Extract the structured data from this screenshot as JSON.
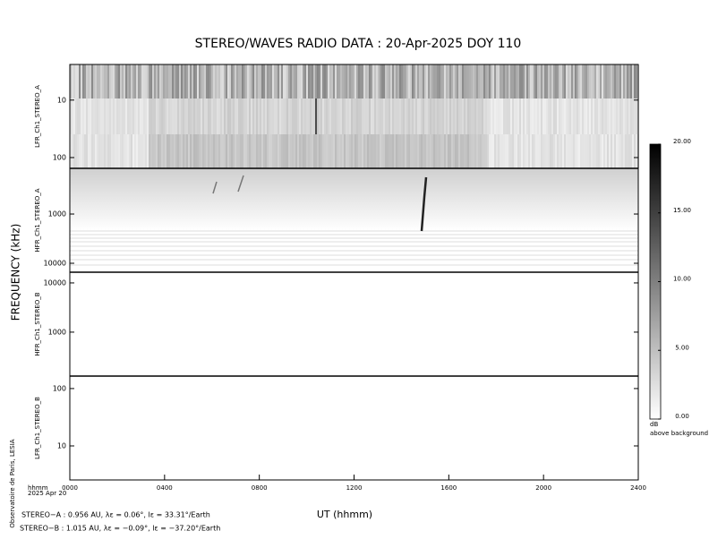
{
  "title": "STEREO/WAVES  RADIO  DATA : 20-Apr-2025  DOY 110",
  "ylabel": "FREQUENCY (kHz)",
  "credit": "Observatoire de Paris, LESIA",
  "chart_data": [
    {
      "type": "spectrogram",
      "ylabel": "LFR_Ch1_STEREO_A",
      "log": true,
      "ylim": [
        154,
        2.4
      ],
      "yticks": [
        10,
        100
      ]
    },
    {
      "type": "spectrogram",
      "ylabel": "HFR_Ch1_STEREO_A",
      "log": true,
      "ylim": [
        15200,
        118
      ],
      "yticks": [
        1000,
        10000
      ]
    },
    {
      "type": "spectrogram",
      "ylabel": "HFR_Ch1_STEREO_B",
      "log": true,
      "ylim": [
        128,
        16500
      ],
      "yticks": [
        1000,
        10000
      ]
    },
    {
      "type": "spectrogram",
      "ylabel": "LFR_Ch1_STEREO_B",
      "log": true,
      "ylim": [
        2.55,
        165
      ],
      "yticks": [
        10,
        100
      ]
    }
  ],
  "x_axis": {
    "label": "UT (hhmm)",
    "unit_label": "hhmm",
    "date": "2025 Apr 20",
    "xlim": [
      0,
      24
    ],
    "xticks": [
      {
        "value": 0,
        "label": "0000"
      },
      {
        "value": 4,
        "label": "0400"
      },
      {
        "value": 8,
        "label": "0800"
      },
      {
        "value": 12,
        "label": "1200"
      },
      {
        "value": 16,
        "label": "1600"
      },
      {
        "value": 20,
        "label": "2000"
      },
      {
        "value": 24,
        "label": "2400"
      }
    ]
  },
  "colorbar": {
    "label": "dB",
    "sublabel": "above background",
    "clim": [
      0,
      20
    ],
    "colors": [
      "#ffffff",
      "#000000"
    ],
    "ticks": [
      {
        "value": 0,
        "label": "0.00"
      },
      {
        "value": 5,
        "label": "5.00"
      },
      {
        "value": 10,
        "label": "10.00"
      },
      {
        "value": 15,
        "label": "15.00"
      },
      {
        "value": 20,
        "label": "20.00"
      }
    ]
  },
  "footer": [
    "STEREO−A : 0.956 AU, λε = 0.06°, lε = 33.31°/Earth",
    "STEREO−B : 1.015 AU, λε = −0.09°, lε = −37.20°/Earth"
  ]
}
